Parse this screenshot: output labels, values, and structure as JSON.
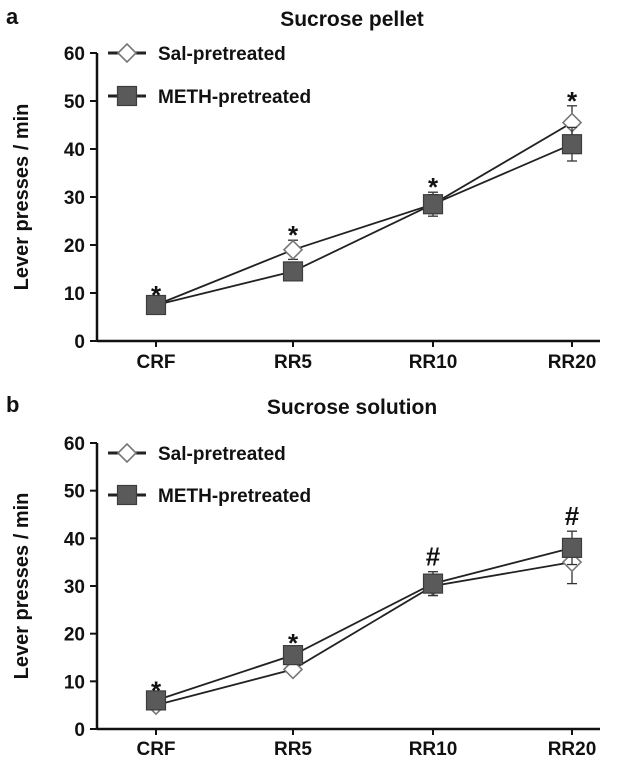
{
  "chart_data": [
    {
      "type": "line",
      "panel_label": "a",
      "title": "Sucrose pellet",
      "xlabel": "",
      "ylabel": "Lever presses / min",
      "categories": [
        "CRF",
        "RR5",
        "RR10",
        "RR20"
      ],
      "ylim": [
        0,
        60
      ],
      "yticks": [
        "0",
        "10",
        "20",
        "30",
        "40",
        "50",
        "60"
      ],
      "grid": false,
      "legend_position": "top-left",
      "series": [
        {
          "name": "Sal-pretreated",
          "marker": "open-diamond",
          "color": "#888888",
          "values": [
            7.5,
            19,
            28.5,
            45.5
          ],
          "errors": [
            1,
            2,
            2,
            3.5
          ]
        },
        {
          "name": "METH-pretreated",
          "marker": "filled-square",
          "color": "#555555",
          "values": [
            7.5,
            14.5,
            28.5,
            41
          ],
          "errors": [
            1,
            1.5,
            2.5,
            3.5
          ]
        }
      ],
      "annotations": [
        "*",
        "*",
        "*",
        "*"
      ]
    },
    {
      "type": "line",
      "panel_label": "b",
      "title": "Sucrose solution",
      "xlabel": "",
      "ylabel": "Lever presses / min",
      "categories": [
        "CRF",
        "RR5",
        "RR10",
        "RR20"
      ],
      "ylim": [
        0,
        60
      ],
      "yticks": [
        "0",
        "10",
        "20",
        "30",
        "40",
        "50",
        "60"
      ],
      "grid": false,
      "legend_position": "top-left",
      "series": [
        {
          "name": "Sal-pretreated",
          "marker": "open-diamond",
          "color": "#888888",
          "values": [
            5,
            12.5,
            30,
            35
          ],
          "errors": [
            1,
            1,
            2,
            4.5
          ]
        },
        {
          "name": "METH-pretreated",
          "marker": "filled-square",
          "color": "#555555",
          "values": [
            6,
            15.5,
            30.5,
            38
          ],
          "errors": [
            1,
            1.5,
            2.5,
            3.5
          ]
        }
      ],
      "annotations": [
        "*",
        "*",
        "#",
        "#"
      ]
    }
  ]
}
